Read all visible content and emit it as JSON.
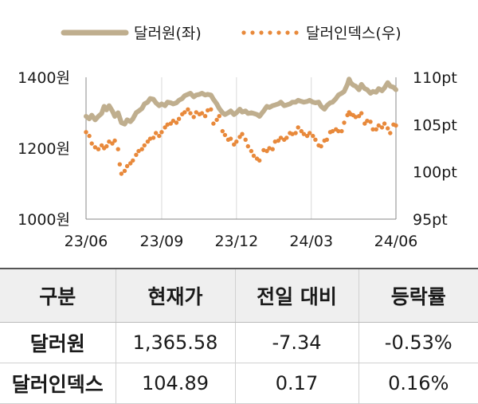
{
  "chart_data": {
    "type": "line",
    "legend": [
      {
        "label": "달러원(좌)",
        "color": "#bfae8e",
        "style": "solid"
      },
      {
        "label": "달러인덱스(우)",
        "color": "#e8893b",
        "style": "dotted"
      }
    ],
    "legend_position": "top-center",
    "x_ticks": [
      "23/06",
      "23/09",
      "23/12",
      "24/03",
      "24/06"
    ],
    "x_range": [
      "2023-06-01",
      "2024-06-12"
    ],
    "y_left": {
      "ticks": [
        "1000원",
        "1200원",
        "1400원"
      ],
      "range": [
        1000,
        1400
      ]
    },
    "y_right": {
      "ticks": [
        "95pt",
        "100pt",
        "105pt",
        "110pt"
      ],
      "range": [
        95,
        110
      ]
    },
    "grid": "vertical",
    "series": [
      {
        "name": "달러원(좌)",
        "axis": "left",
        "color": "#bfae8e",
        "points": [
          [
            "2023-06-01",
            1290
          ],
          [
            "2023-06-05",
            1283
          ],
          [
            "2023-06-08",
            1293
          ],
          [
            "2023-06-12",
            1280
          ],
          [
            "2023-06-16",
            1290
          ],
          [
            "2023-06-20",
            1298
          ],
          [
            "2023-06-23",
            1318
          ],
          [
            "2023-06-26",
            1308
          ],
          [
            "2023-06-29",
            1320
          ],
          [
            "2023-07-03",
            1305
          ],
          [
            "2023-07-06",
            1290
          ],
          [
            "2023-07-10",
            1300
          ],
          [
            "2023-07-14",
            1272
          ],
          [
            "2023-07-18",
            1268
          ],
          [
            "2023-07-21",
            1280
          ],
          [
            "2023-07-25",
            1275
          ],
          [
            "2023-07-28",
            1283
          ],
          [
            "2023-08-01",
            1300
          ],
          [
            "2023-08-04",
            1305
          ],
          [
            "2023-08-08",
            1312
          ],
          [
            "2023-08-11",
            1325
          ],
          [
            "2023-08-15",
            1330
          ],
          [
            "2023-08-18",
            1340
          ],
          [
            "2023-08-22",
            1338
          ],
          [
            "2023-08-25",
            1328
          ],
          [
            "2023-08-29",
            1320
          ],
          [
            "2023-09-01",
            1325
          ],
          [
            "2023-09-05",
            1320
          ],
          [
            "2023-09-08",
            1330
          ],
          [
            "2023-09-12",
            1328
          ],
          [
            "2023-09-15",
            1325
          ],
          [
            "2023-09-19",
            1328
          ],
          [
            "2023-09-22",
            1335
          ],
          [
            "2023-09-26",
            1340
          ],
          [
            "2023-09-29",
            1348
          ],
          [
            "2023-10-03",
            1352
          ],
          [
            "2023-10-06",
            1355
          ],
          [
            "2023-10-10",
            1345
          ],
          [
            "2023-10-13",
            1350
          ],
          [
            "2023-10-17",
            1352
          ],
          [
            "2023-10-20",
            1355
          ],
          [
            "2023-10-24",
            1350
          ],
          [
            "2023-10-27",
            1352
          ],
          [
            "2023-10-31",
            1350
          ],
          [
            "2023-11-03",
            1338
          ],
          [
            "2023-11-07",
            1325
          ],
          [
            "2023-11-10",
            1312
          ],
          [
            "2023-11-14",
            1300
          ],
          [
            "2023-11-17",
            1295
          ],
          [
            "2023-11-21",
            1300
          ],
          [
            "2023-11-24",
            1305
          ],
          [
            "2023-11-28",
            1295
          ],
          [
            "2023-12-01",
            1300
          ],
          [
            "2023-12-05",
            1310
          ],
          [
            "2023-12-08",
            1302
          ],
          [
            "2023-12-12",
            1305
          ],
          [
            "2023-12-15",
            1298
          ],
          [
            "2023-12-19",
            1300
          ],
          [
            "2023-12-22",
            1298
          ],
          [
            "2023-12-26",
            1295
          ],
          [
            "2023-12-29",
            1290
          ],
          [
            "2024-01-03",
            1305
          ],
          [
            "2024-01-07",
            1318
          ],
          [
            "2024-01-10",
            1315
          ],
          [
            "2024-01-14",
            1320
          ],
          [
            "2024-01-17",
            1322
          ],
          [
            "2024-01-21",
            1325
          ],
          [
            "2024-01-24",
            1330
          ],
          [
            "2024-01-28",
            1320
          ],
          [
            "2024-01-31",
            1322
          ],
          [
            "2024-02-04",
            1325
          ],
          [
            "2024-02-07",
            1330
          ],
          [
            "2024-02-11",
            1330
          ],
          [
            "2024-02-14",
            1335
          ],
          [
            "2024-02-18",
            1332
          ],
          [
            "2024-02-21",
            1330
          ],
          [
            "2024-02-25",
            1332
          ],
          [
            "2024-02-28",
            1335
          ],
          [
            "2024-03-03",
            1330
          ],
          [
            "2024-03-06",
            1328
          ],
          [
            "2024-03-10",
            1330
          ],
          [
            "2024-03-13",
            1318
          ],
          [
            "2024-03-17",
            1310
          ],
          [
            "2024-03-20",
            1320
          ],
          [
            "2024-03-24",
            1328
          ],
          [
            "2024-03-27",
            1330
          ],
          [
            "2024-03-31",
            1340
          ],
          [
            "2024-04-03",
            1350
          ],
          [
            "2024-04-07",
            1355
          ],
          [
            "2024-04-10",
            1360
          ],
          [
            "2024-04-14",
            1380
          ],
          [
            "2024-04-16",
            1395
          ],
          [
            "2024-04-18",
            1385
          ],
          [
            "2024-04-21",
            1378
          ],
          [
            "2024-04-24",
            1375
          ],
          [
            "2024-04-28",
            1365
          ],
          [
            "2024-05-01",
            1380
          ],
          [
            "2024-05-05",
            1368
          ],
          [
            "2024-05-08",
            1365
          ],
          [
            "2024-05-12",
            1355
          ],
          [
            "2024-05-15",
            1360
          ],
          [
            "2024-05-19",
            1358
          ],
          [
            "2024-05-22",
            1368
          ],
          [
            "2024-05-26",
            1362
          ],
          [
            "2024-05-29",
            1370
          ],
          [
            "2024-06-02",
            1385
          ],
          [
            "2024-06-05",
            1375
          ],
          [
            "2024-06-09",
            1372
          ],
          [
            "2024-06-12",
            1365
          ]
        ]
      },
      {
        "name": "달러인덱스(우)",
        "axis": "right",
        "color": "#e8893b",
        "points": [
          [
            "2023-06-01",
            104.2
          ],
          [
            "2023-06-05",
            103.8
          ],
          [
            "2023-06-08",
            103.0
          ],
          [
            "2023-06-12",
            102.6
          ],
          [
            "2023-06-16",
            102.4
          ],
          [
            "2023-06-20",
            102.8
          ],
          [
            "2023-06-23",
            102.5
          ],
          [
            "2023-06-26",
            102.7
          ],
          [
            "2023-06-29",
            103.2
          ],
          [
            "2023-07-03",
            103.0
          ],
          [
            "2023-07-06",
            103.3
          ],
          [
            "2023-07-10",
            102.4
          ],
          [
            "2023-07-12",
            100.8
          ],
          [
            "2023-07-14",
            99.8
          ],
          [
            "2023-07-18",
            100.1
          ],
          [
            "2023-07-21",
            100.6
          ],
          [
            "2023-07-25",
            100.9
          ],
          [
            "2023-07-28",
            101.2
          ],
          [
            "2023-08-01",
            101.8
          ],
          [
            "2023-08-04",
            102.2
          ],
          [
            "2023-08-08",
            102.4
          ],
          [
            "2023-08-11",
            102.8
          ],
          [
            "2023-08-15",
            103.2
          ],
          [
            "2023-08-18",
            103.5
          ],
          [
            "2023-08-22",
            103.6
          ],
          [
            "2023-08-25",
            104.1
          ],
          [
            "2023-08-29",
            103.8
          ],
          [
            "2023-09-01",
            104.2
          ],
          [
            "2023-09-05",
            104.7
          ],
          [
            "2023-09-08",
            105.0
          ],
          [
            "2023-09-12",
            105.1
          ],
          [
            "2023-09-15",
            105.4
          ],
          [
            "2023-09-19",
            105.2
          ],
          [
            "2023-09-22",
            105.6
          ],
          [
            "2023-09-26",
            106.1
          ],
          [
            "2023-09-29",
            106.3
          ],
          [
            "2023-10-03",
            106.6
          ],
          [
            "2023-10-06",
            106.2
          ],
          [
            "2023-10-10",
            105.8
          ],
          [
            "2023-10-13",
            106.3
          ],
          [
            "2023-10-17",
            106.1
          ],
          [
            "2023-10-20",
            106.2
          ],
          [
            "2023-10-24",
            105.9
          ],
          [
            "2023-10-27",
            106.5
          ],
          [
            "2023-10-31",
            106.6
          ],
          [
            "2023-11-03",
            105.1
          ],
          [
            "2023-11-07",
            105.5
          ],
          [
            "2023-11-10",
            105.9
          ],
          [
            "2023-11-14",
            104.3
          ],
          [
            "2023-11-17",
            103.9
          ],
          [
            "2023-11-21",
            103.4
          ],
          [
            "2023-11-24",
            103.5
          ],
          [
            "2023-11-28",
            102.9
          ],
          [
            "2023-12-01",
            103.2
          ],
          [
            "2023-12-05",
            103.7
          ],
          [
            "2023-12-08",
            104.0
          ],
          [
            "2023-12-12",
            103.4
          ],
          [
            "2023-12-15",
            102.7
          ],
          [
            "2023-12-19",
            102.2
          ],
          [
            "2023-12-22",
            101.7
          ],
          [
            "2023-12-26",
            101.4
          ],
          [
            "2023-12-29",
            101.2
          ],
          [
            "2024-01-03",
            102.3
          ],
          [
            "2024-01-07",
            102.2
          ],
          [
            "2024-01-10",
            102.5
          ],
          [
            "2024-01-14",
            102.4
          ],
          [
            "2024-01-17",
            103.2
          ],
          [
            "2024-01-21",
            103.3
          ],
          [
            "2024-01-24",
            103.6
          ],
          [
            "2024-01-28",
            103.4
          ],
          [
            "2024-01-31",
            103.6
          ],
          [
            "2024-02-04",
            104.1
          ],
          [
            "2024-02-07",
            104.0
          ],
          [
            "2024-02-11",
            104.1
          ],
          [
            "2024-02-14",
            104.7
          ],
          [
            "2024-02-18",
            104.3
          ],
          [
            "2024-02-21",
            104.0
          ],
          [
            "2024-02-25",
            103.8
          ],
          [
            "2024-02-28",
            104.1
          ],
          [
            "2024-03-03",
            103.8
          ],
          [
            "2024-03-06",
            103.4
          ],
          [
            "2024-03-10",
            102.8
          ],
          [
            "2024-03-13",
            102.7
          ],
          [
            "2024-03-17",
            103.3
          ],
          [
            "2024-03-20",
            103.4
          ],
          [
            "2024-03-24",
            104.2
          ],
          [
            "2024-03-27",
            104.3
          ],
          [
            "2024-03-31",
            104.5
          ],
          [
            "2024-04-03",
            104.3
          ],
          [
            "2024-04-07",
            104.3
          ],
          [
            "2024-04-10",
            105.2
          ],
          [
            "2024-04-14",
            106.0
          ],
          [
            "2024-04-16",
            106.3
          ],
          [
            "2024-04-18",
            106.1
          ],
          [
            "2024-04-21",
            106.0
          ],
          [
            "2024-04-24",
            105.8
          ],
          [
            "2024-04-28",
            105.9
          ],
          [
            "2024-05-01",
            106.2
          ],
          [
            "2024-05-05",
            105.1
          ],
          [
            "2024-05-08",
            105.4
          ],
          [
            "2024-05-12",
            105.3
          ],
          [
            "2024-05-15",
            104.5
          ],
          [
            "2024-05-19",
            104.5
          ],
          [
            "2024-05-22",
            104.9
          ],
          [
            "2024-05-26",
            104.7
          ],
          [
            "2024-05-29",
            105.1
          ],
          [
            "2024-06-02",
            104.6
          ],
          [
            "2024-06-05",
            104.1
          ],
          [
            "2024-06-09",
            105.0
          ],
          [
            "2024-06-12",
            104.9
          ]
        ]
      }
    ]
  },
  "table": {
    "headers": [
      "구분",
      "현재가",
      "전일 대비",
      "등락률"
    ],
    "rows": [
      [
        "달러원",
        "1,365.58",
        "-7.34",
        "-0.53%"
      ],
      [
        "달러인덱스",
        "104.89",
        "0.17",
        "0.16%"
      ]
    ]
  }
}
